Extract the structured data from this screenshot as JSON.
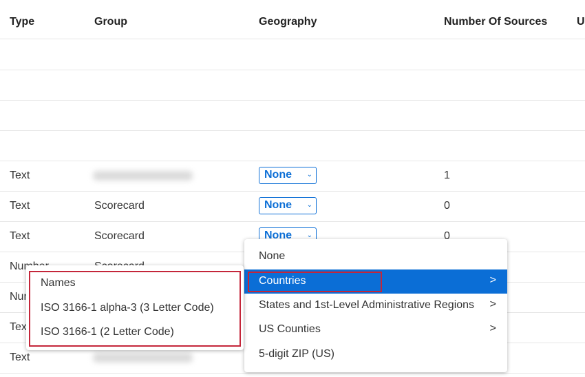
{
  "table": {
    "columns": [
      "Type",
      "Group",
      "Geography",
      "Number Of Sources",
      "U"
    ],
    "rows": [
      {
        "type": "",
        "group": "",
        "geography": "",
        "sources": ""
      },
      {
        "type": "",
        "group": "",
        "geography": "",
        "sources": ""
      },
      {
        "type": "",
        "group": "",
        "geography": "",
        "sources": ""
      },
      {
        "type": "",
        "group": "",
        "geography": "",
        "sources": ""
      },
      {
        "type": "Text",
        "group": "",
        "geography": "None",
        "sources": "1"
      },
      {
        "type": "Text",
        "group": "Scorecard",
        "geography": "None",
        "sources": "0"
      },
      {
        "type": "Text",
        "group": "Scorecard",
        "geography": "None",
        "sources": "0"
      },
      {
        "type": "Number",
        "group": "Scorecard",
        "geography": "",
        "sources": ""
      },
      {
        "type": "Number",
        "group": "",
        "geography": "",
        "sources": ""
      },
      {
        "type": "Text",
        "group": "",
        "geography": "",
        "sources": ""
      },
      {
        "type": "Text",
        "group": "",
        "geography": "",
        "sources": ""
      }
    ]
  },
  "geo_menu": {
    "items": [
      {
        "label": "None",
        "submenu": false
      },
      {
        "label": "Countries",
        "submenu": true,
        "active": true
      },
      {
        "label": "States and 1st-Level Administrative Regions",
        "submenu": true
      },
      {
        "label": "US Counties",
        "submenu": true
      },
      {
        "label": "5-digit ZIP (US)",
        "submenu": false
      }
    ],
    "arrow": ">"
  },
  "countries_submenu": {
    "items": [
      "Names",
      "ISO 3166-1 alpha-3 (3 Letter Code)",
      "ISO 3166-1 (2 Letter Code)"
    ]
  },
  "colors": {
    "accent": "#0b6ed6",
    "highlight_box": "#c4263a"
  }
}
